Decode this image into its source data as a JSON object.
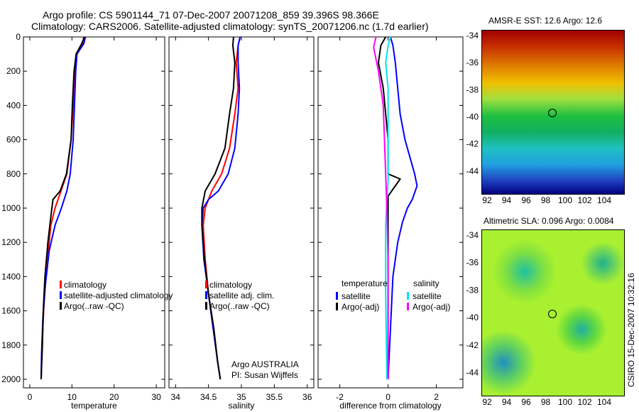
{
  "title_line1": "Argo profile: CS 5901144_71 07-Dec-2007 20071208_859 39.396S 98.366E",
  "title_line2": "Climatology: CARS2006. Satellite-adjusted climatology: synTS_20071206.nc (1.7d earlier)",
  "side_label": "CSIRO 15-Dec-2007 10:32:16",
  "colors": {
    "climatology": "#ff0000",
    "satellite": "#0000ff",
    "argo": "#000000",
    "sal_satellite": "#00e5ee",
    "sal_argo": "#ff00ff"
  },
  "chart_data": [
    {
      "type": "line",
      "xlabel": "temperature",
      "ylabel": "",
      "xlim": [
        -1.5,
        32
      ],
      "ylim": [
        2050,
        0
      ],
      "xticks": [
        "0",
        "10",
        "20",
        "30"
      ],
      "xtick_values": [
        0,
        10,
        20,
        30
      ],
      "yticks": [
        "0",
        "200",
        "400",
        "600",
        "800",
        "1000",
        "1200",
        "1400",
        "1600",
        "1800",
        "2000"
      ],
      "legend": [
        "climatology",
        "satellite-adjusted climatology",
        "Argo(..raw -QC)"
      ],
      "series": [
        {
          "name": "climatology",
          "color": "#ff0000",
          "points": [
            [
              12.8,
              0
            ],
            [
              12.5,
              40
            ],
            [
              11,
              100
            ],
            [
              10.7,
              200
            ],
            [
              10.3,
              400
            ],
            [
              9.8,
              600
            ],
            [
              8.8,
              800
            ],
            [
              7.4,
              900
            ],
            [
              6,
              1000
            ],
            [
              5,
              1100
            ],
            [
              4.2,
              1300
            ],
            [
              3.5,
              1500
            ],
            [
              3.1,
              1700
            ],
            [
              2.8,
              1900
            ],
            [
              2.7,
              2000
            ]
          ]
        },
        {
          "name": "satellite-adjusted climatology",
          "color": "#0000ff",
          "points": [
            [
              13.2,
              0
            ],
            [
              12.8,
              40
            ],
            [
              11.2,
              100
            ],
            [
              10.9,
              200
            ],
            [
              10.6,
              400
            ],
            [
              10.3,
              600
            ],
            [
              9.6,
              800
            ],
            [
              8.8,
              900
            ],
            [
              7.5,
              1000
            ],
            [
              6,
              1100
            ],
            [
              4.6,
              1250
            ],
            [
              3.7,
              1450
            ],
            [
              3.1,
              1650
            ],
            [
              2.8,
              1850
            ],
            [
              2.7,
              2000
            ]
          ]
        },
        {
          "name": "Argo(..raw -QC)",
          "color": "#000000",
          "points": [
            [
              13,
              0
            ],
            [
              12.3,
              40
            ],
            [
              11,
              100
            ],
            [
              10.5,
              200
            ],
            [
              10.1,
              400
            ],
            [
              9.8,
              600
            ],
            [
              8.7,
              800
            ],
            [
              7.2,
              900
            ],
            [
              5.5,
              950
            ],
            [
              5,
              1050
            ],
            [
              4.3,
              1200
            ],
            [
              3.6,
              1400
            ],
            [
              3.2,
              1600
            ],
            [
              3,
              1800
            ],
            [
              2.7,
              2000
            ]
          ]
        }
      ]
    },
    {
      "type": "line",
      "xlabel": "salinity",
      "xlim": [
        33.9,
        36.1
      ],
      "ylim": [
        2050,
        0
      ],
      "xticks": [
        "34",
        "34.5",
        "35",
        "35.5",
        "36"
      ],
      "xtick_values": [
        34,
        34.5,
        35,
        35.5,
        36
      ],
      "legend": [
        "climatology",
        "satellite adj. clim.",
        "Argo(..raw -QC)"
      ],
      "annotation": [
        "Argo AUSTRALIA",
        "PI: Susan Wijffels"
      ],
      "series": [
        {
          "name": "climatology",
          "color": "#ff0000",
          "points": [
            [
              34.98,
              0
            ],
            [
              34.95,
              50
            ],
            [
              34.92,
              150
            ],
            [
              34.95,
              300
            ],
            [
              34.9,
              450
            ],
            [
              34.82,
              650
            ],
            [
              34.7,
              800
            ],
            [
              34.55,
              900
            ],
            [
              34.45,
              1000
            ],
            [
              34.42,
              1100
            ],
            [
              34.45,
              1300
            ],
            [
              34.5,
              1500
            ],
            [
              34.57,
              1700
            ],
            [
              34.64,
              1900
            ],
            [
              34.68,
              2000
            ]
          ]
        },
        {
          "name": "satellite adj. clim.",
          "color": "#0000ff",
          "points": [
            [
              34.98,
              0
            ],
            [
              34.95,
              50
            ],
            [
              34.95,
              150
            ],
            [
              34.97,
              300
            ],
            [
              34.95,
              450
            ],
            [
              34.9,
              650
            ],
            [
              34.8,
              800
            ],
            [
              34.65,
              900
            ],
            [
              34.5,
              950
            ],
            [
              34.42,
              1000
            ],
            [
              34.4,
              1100
            ],
            [
              34.43,
              1300
            ],
            [
              34.5,
              1500
            ],
            [
              34.57,
              1700
            ],
            [
              34.64,
              1900
            ],
            [
              34.68,
              2000
            ]
          ]
        },
        {
          "name": "Argo(..raw -QC)",
          "color": "#000000",
          "points": [
            [
              34.88,
              0
            ],
            [
              34.87,
              50
            ],
            [
              34.9,
              150
            ],
            [
              34.88,
              300
            ],
            [
              34.82,
              450
            ],
            [
              34.75,
              650
            ],
            [
              34.6,
              800
            ],
            [
              34.45,
              900
            ],
            [
              34.4,
              1000
            ],
            [
              34.4,
              1100
            ],
            [
              34.44,
              1300
            ],
            [
              34.5,
              1500
            ],
            [
              34.58,
              1700
            ],
            [
              34.64,
              1900
            ],
            [
              34.68,
              2000
            ]
          ]
        }
      ]
    },
    {
      "type": "line",
      "xlabel": "difference from climatology",
      "xlim": [
        -2.9,
        3.1
      ],
      "ylim": [
        2050,
        0
      ],
      "xticks": [
        "-2",
        "0",
        "2"
      ],
      "xtick_values": [
        -2,
        0,
        2
      ],
      "legend_title_left": "temperature",
      "legend_title_right": "salinity",
      "legend": [
        "satellite",
        "Argo(-adj)",
        "satellite",
        "Argo(-adj)"
      ],
      "series": [
        {
          "name": "temperature satellite",
          "color": "#0000ff",
          "points": [
            [
              0.1,
              0
            ],
            [
              0.2,
              50
            ],
            [
              0.3,
              150
            ],
            [
              0.4,
              300
            ],
            [
              0.5,
              450
            ],
            [
              0.7,
              600
            ],
            [
              0.9,
              700
            ],
            [
              1.1,
              800
            ],
            [
              1.2,
              870
            ],
            [
              1,
              950
            ],
            [
              0.8,
              1000
            ],
            [
              0.6,
              1080
            ],
            [
              0.4,
              1200
            ],
            [
              0.2,
              1400
            ],
            [
              0.1,
              1700
            ],
            [
              0,
              2000
            ]
          ]
        },
        {
          "name": "temperature Argo(-adj)",
          "color": "#000000",
          "points": [
            [
              -0.1,
              0
            ],
            [
              -0.3,
              50
            ],
            [
              -0.4,
              150
            ],
            [
              -0.2,
              300
            ],
            [
              -0.1,
              450
            ],
            [
              0,
              600
            ],
            [
              0,
              800
            ],
            [
              0.5,
              830
            ],
            [
              0,
              930
            ],
            [
              0,
              1100
            ],
            [
              0,
              1400
            ],
            [
              0,
              2000
            ]
          ]
        },
        {
          "name": "salinity satellite",
          "color": "#00e5ee",
          "points": [
            [
              0.1,
              0
            ],
            [
              0,
              50
            ],
            [
              -0.1,
              150
            ],
            [
              0,
              300
            ],
            [
              0,
              600
            ],
            [
              0,
              850
            ],
            [
              -0.05,
              950
            ],
            [
              -0.1,
              1100
            ],
            [
              -0.1,
              1500
            ],
            [
              -0.05,
              2000
            ]
          ]
        },
        {
          "name": "salinity Argo(-adj)",
          "color": "#ff00ff",
          "points": [
            [
              -0.5,
              0
            ],
            [
              -0.6,
              60
            ],
            [
              -0.4,
              200
            ],
            [
              -0.2,
              400
            ],
            [
              -0.15,
              600
            ],
            [
              -0.1,
              800
            ],
            [
              -0.05,
              1000
            ],
            [
              0,
              1300
            ],
            [
              0,
              2000
            ]
          ]
        }
      ]
    }
  ],
  "maps": [
    {
      "title": "AMSR-E SST: 12.6 Argo: 12.6",
      "xticks": [
        "92",
        "94",
        "96",
        "98",
        "100",
        "102",
        "104"
      ],
      "yticks": [
        "-34",
        "-36",
        "-38",
        "-40",
        "-42",
        "-44"
      ]
    },
    {
      "title": "Altimetric SLA: 0.096 Argo: 0.0084",
      "xticks": [
        "92",
        "94",
        "96",
        "98",
        "100",
        "102",
        "104"
      ],
      "yticks": [
        "-34",
        "-36",
        "-38",
        "-40",
        "-42",
        "-44"
      ]
    }
  ]
}
